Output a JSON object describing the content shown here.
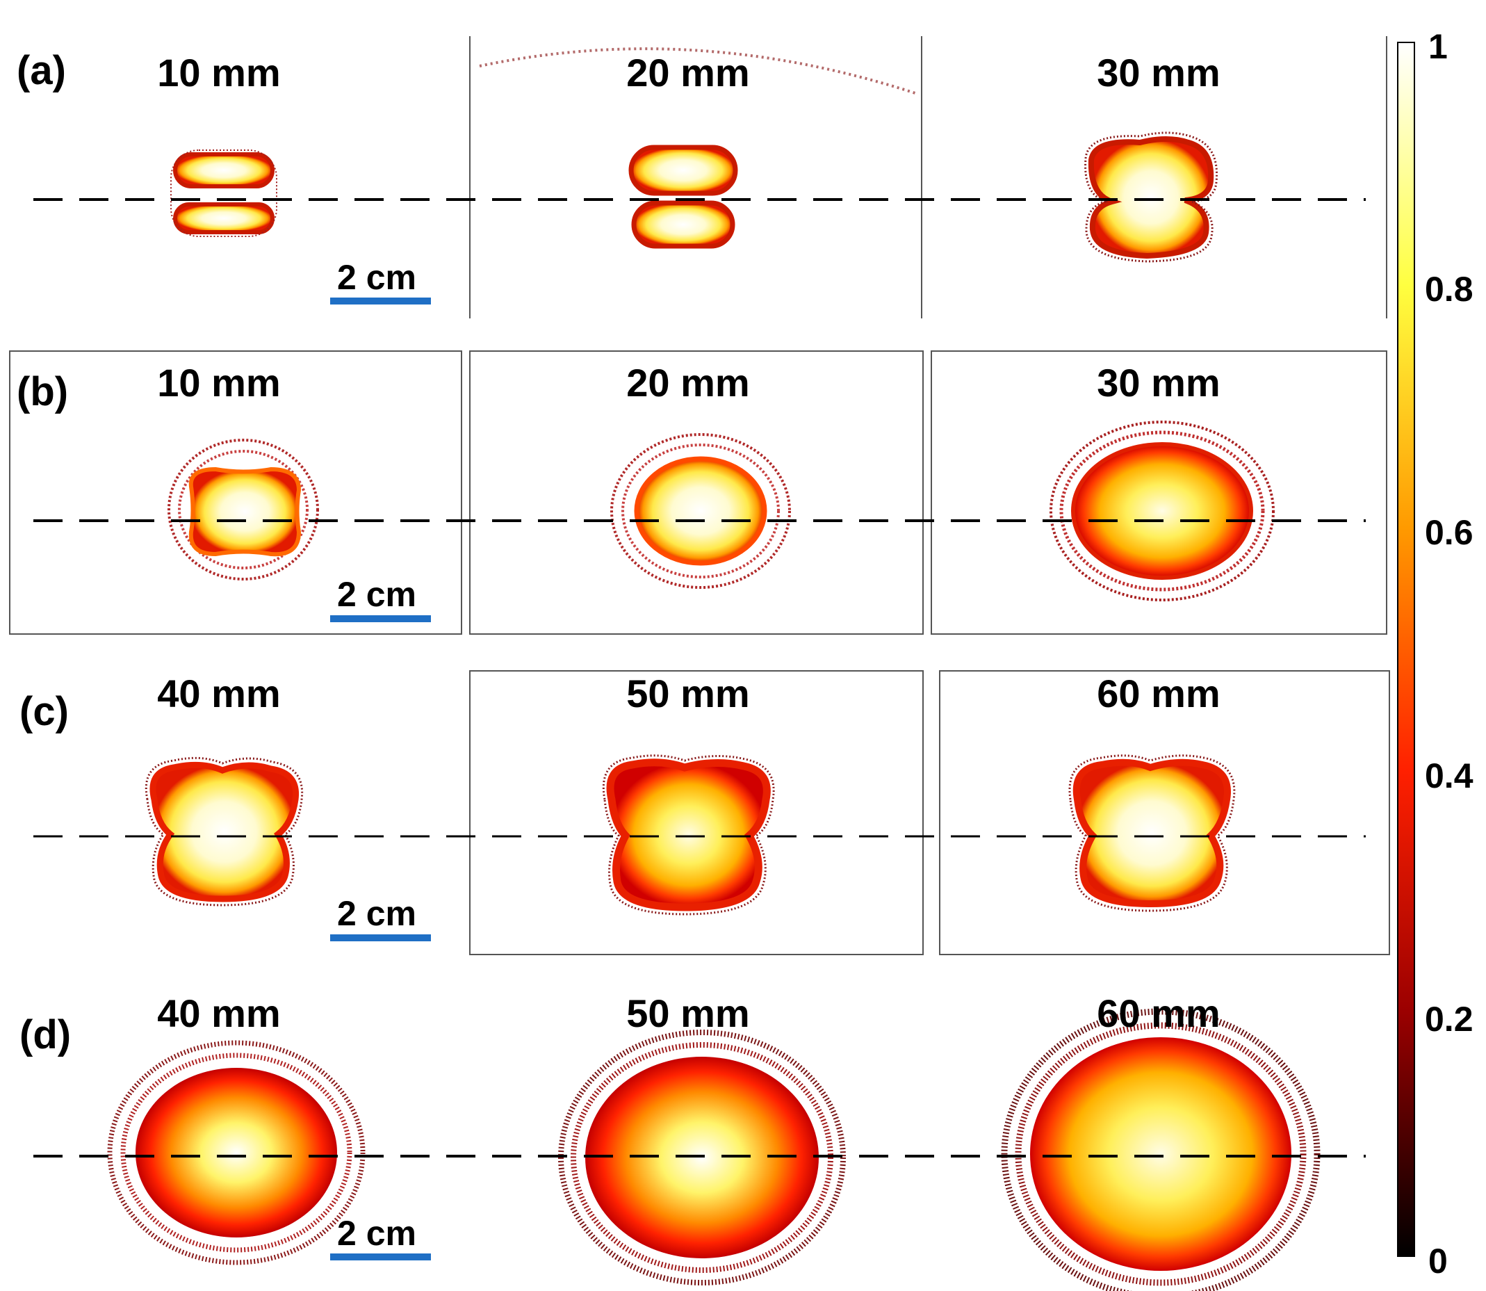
{
  "rows": [
    {
      "label": "(a)",
      "distances": [
        "10 mm",
        "20 mm",
        "30 mm"
      ],
      "scale": "2 cm"
    },
    {
      "label": "(b)",
      "distances": [
        "10 mm",
        "20 mm",
        "30 mm"
      ],
      "scale": "2 cm"
    },
    {
      "label": "(c)",
      "distances": [
        "40 mm",
        "50 mm",
        "60 mm"
      ],
      "scale": "2 cm"
    },
    {
      "label": "(d)",
      "distances": [
        "40 mm",
        "50 mm",
        "60 mm"
      ],
      "scale": "2 cm"
    }
  ],
  "colorbar": {
    "ticks": [
      "1",
      "0.8",
      "0.6",
      "0.4",
      "0.2",
      "0"
    ],
    "colors": [
      "#ffffff",
      "#ffff40",
      "#ff9a00",
      "#ff2000",
      "#9a0000",
      "#000000"
    ]
  },
  "scale_bar_color": "#1f6fc5"
}
